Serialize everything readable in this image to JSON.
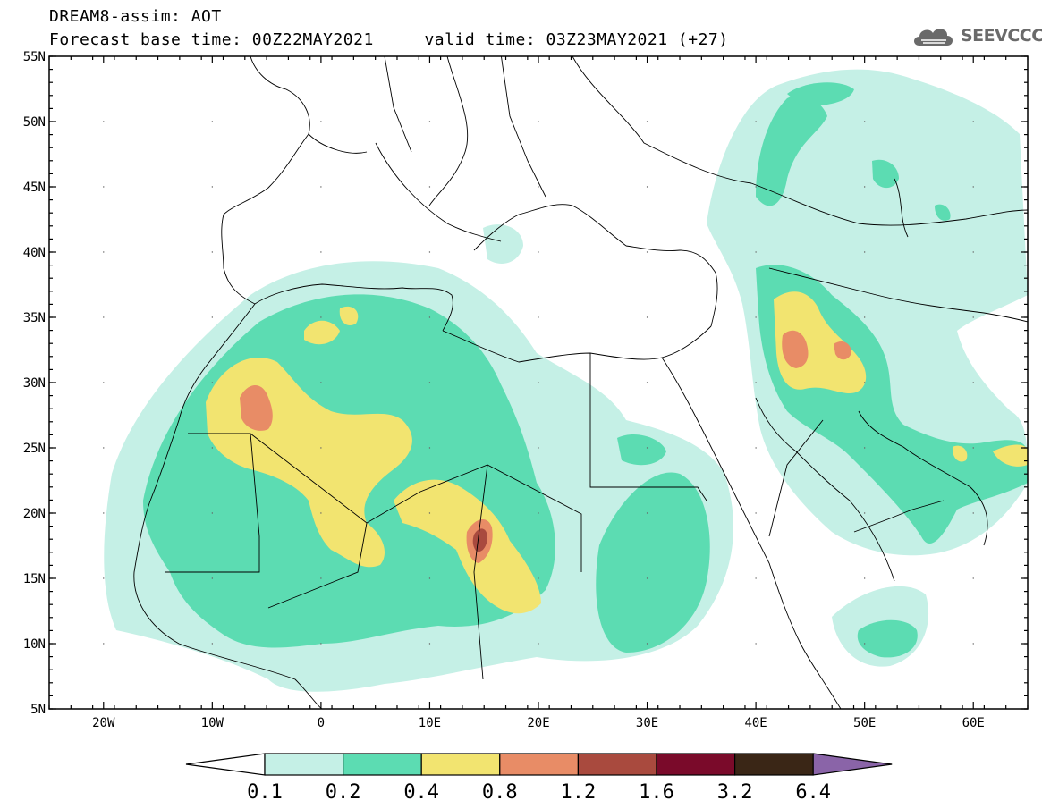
{
  "header": {
    "title_line1": "DREAM8-assim: AOT",
    "title_line2": "Forecast base time: 00Z22MAY2021     valid time: 03Z23MAY2021 (+27)"
  },
  "logo": {
    "text": "SEEVCCC",
    "icon": "cloud-icon",
    "color": "#6a6a6a"
  },
  "map": {
    "lon_range": [
      -25,
      65
    ],
    "lat_range": [
      5,
      55
    ],
    "lat_labels": [
      "55N",
      "50N",
      "45N",
      "40N",
      "35N",
      "30N",
      "25N",
      "20N",
      "15N",
      "10N",
      "5N"
    ],
    "lon_labels": [
      "20W",
      "10W",
      "0",
      "10E",
      "20E",
      "30E",
      "40E",
      "50E",
      "60E"
    ]
  },
  "colorbar": {
    "labels": [
      "0.1",
      "0.2",
      "0.4",
      "0.8",
      "1.2",
      "1.6",
      "3.2",
      "6.4"
    ],
    "colors": [
      "#c5f0e6",
      "#5cdcb2",
      "#f2e470",
      "#e88c66",
      "#a94a3e",
      "#7a0a2a",
      "#3a2616",
      "#8a64a8"
    ]
  }
}
